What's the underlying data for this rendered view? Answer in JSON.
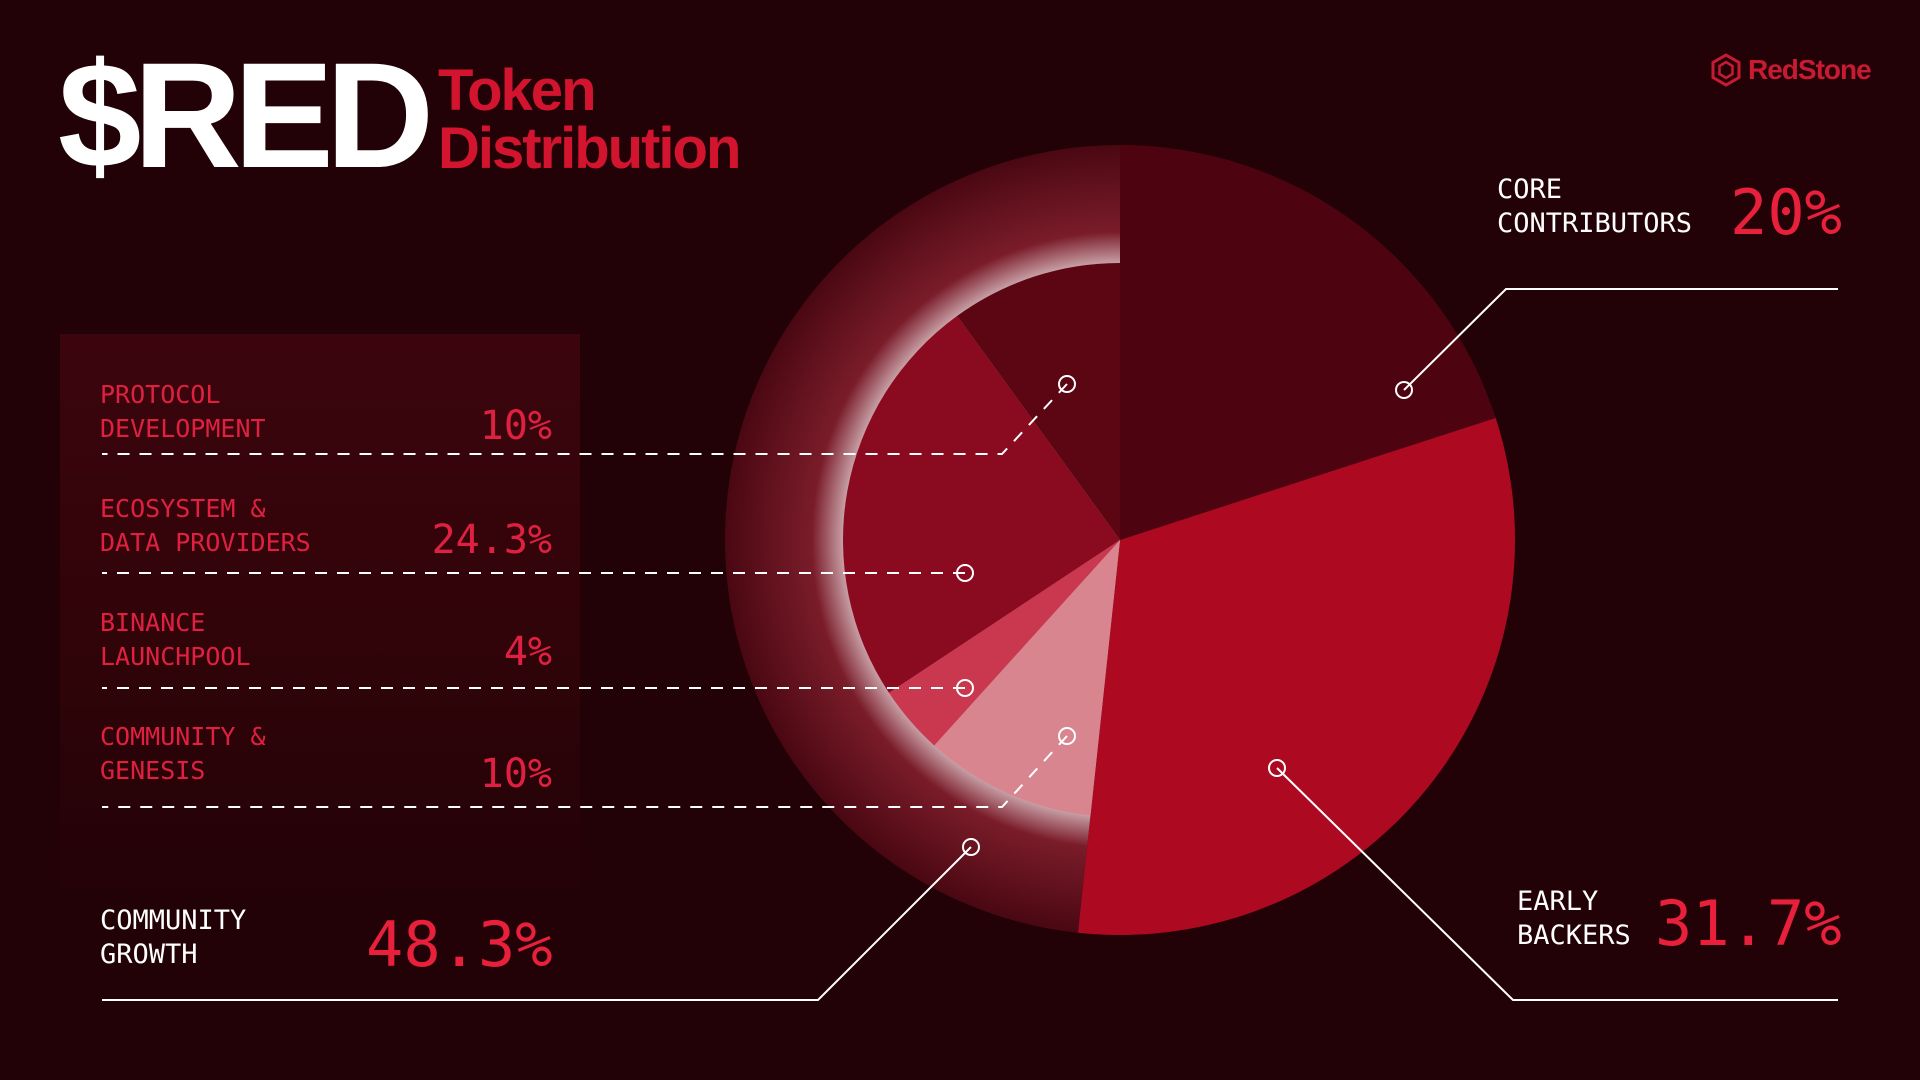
{
  "header": {
    "title": "$RED",
    "subtitle_line1": "Token",
    "subtitle_line2": "Distribution"
  },
  "brand": {
    "name": "RedStone",
    "icon": "redstone-hexagon-icon"
  },
  "colors": {
    "background": "#230207",
    "accent": "#d2142f",
    "core_contributors": "#4e0410",
    "early_backers": "#ad0a22",
    "protocol_development": "#5c0614",
    "ecosystem_data_providers": "#8a0a1f",
    "binance_launchpool": "#c9384f",
    "community_genesis": "#d98590",
    "community_growth_ring": "#7a1422"
  },
  "chart_data": {
    "type": "pie",
    "title": "$RED Token Distribution",
    "slices": [
      {
        "label": "CORE CONTRIBUTORS",
        "value": 20,
        "display": "20%"
      },
      {
        "label": "EARLY BACKERS",
        "value": 31.7,
        "display": "31.7%"
      },
      {
        "label": "COMMUNITY GROWTH",
        "value": 48.3,
        "display": "48.3%",
        "breakdown": [
          {
            "label": "COMMUNITY & GENESIS",
            "value": 10,
            "display": "10%"
          },
          {
            "label": "BINANCE LAUNCHPOOL",
            "value": 4,
            "display": "4%"
          },
          {
            "label": "ECOSYSTEM & DATA PROVIDERS",
            "value": 24.3,
            "display": "24.3%"
          },
          {
            "label": "PROTOCOL DEVELOPMENT",
            "value": 10,
            "display": "10%"
          }
        ]
      }
    ]
  },
  "legend": {
    "protocol_development": {
      "label": "PROTOCOL\nDEVELOPMENT",
      "pct": "10%"
    },
    "ecosystem": {
      "label": "ECOSYSTEM &\nDATA PROVIDERS",
      "pct": "24.3%"
    },
    "binance": {
      "label": "BINANCE\nLAUNCHPOOL",
      "pct": "4%"
    },
    "community_genesis": {
      "label": "COMMUNITY &\nGENESIS",
      "pct": "10%"
    }
  },
  "callouts": {
    "core": {
      "label": "CORE\nCONTRIBUTORS",
      "pct": "20%"
    },
    "early": {
      "label": "EARLY\nBACKERS",
      "pct": "31.7%"
    },
    "growth": {
      "label": "COMMUNITY\nGROWTH",
      "pct": "48.3%"
    }
  }
}
